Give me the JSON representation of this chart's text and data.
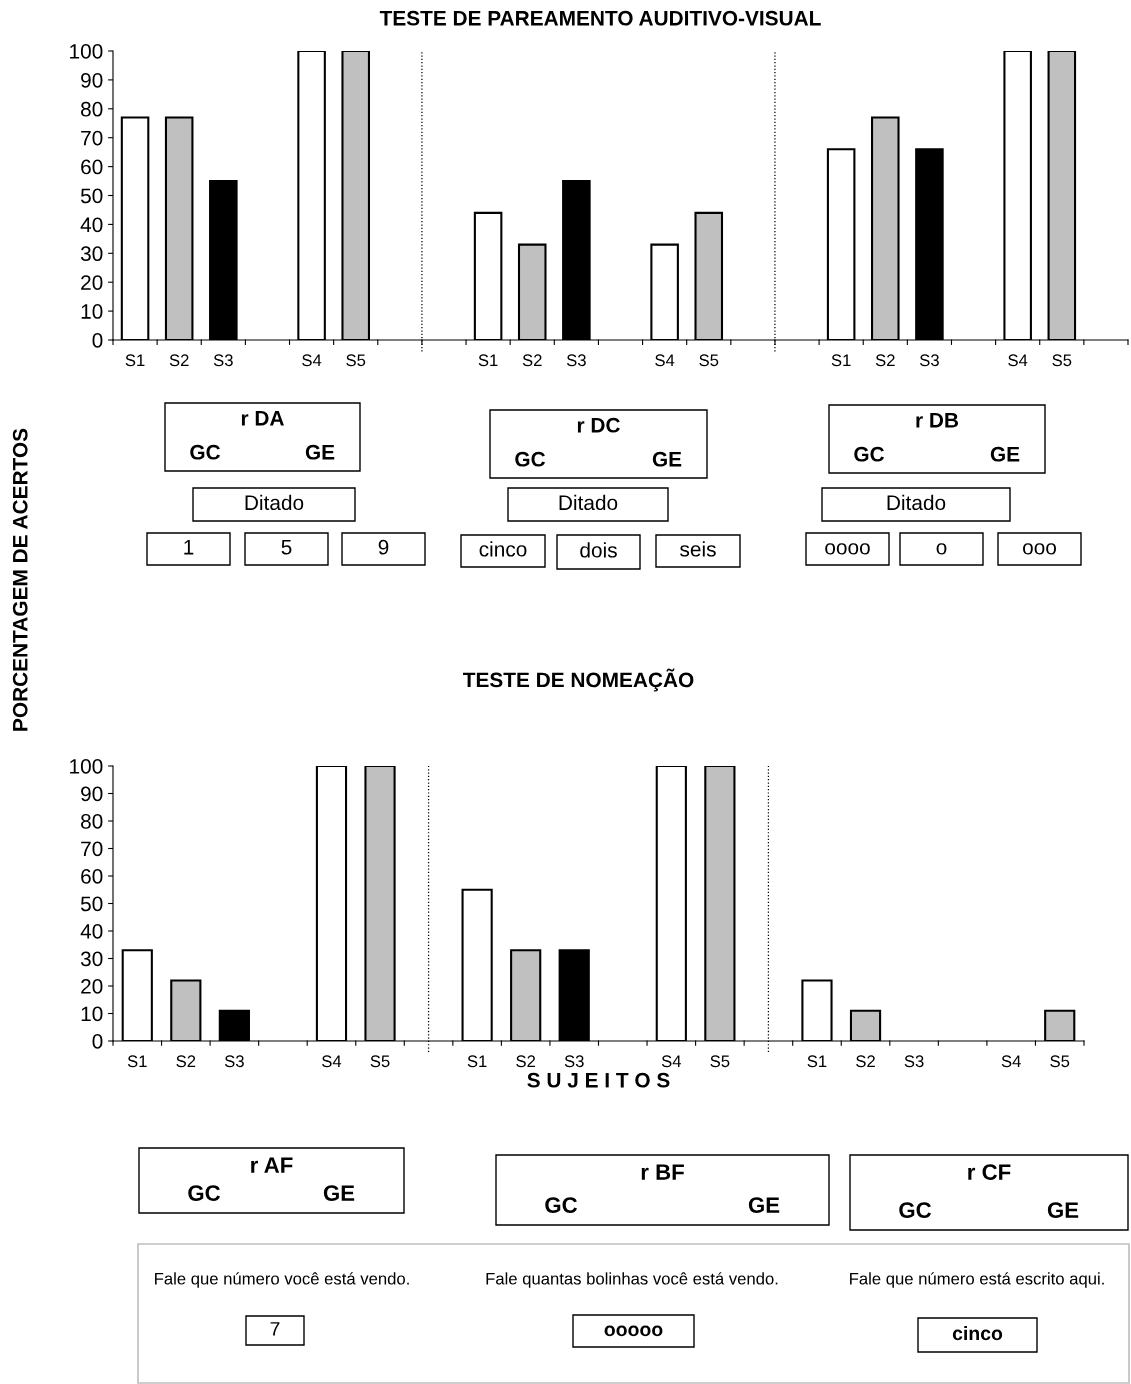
{
  "chart_data": [
    {
      "type": "bar",
      "title": "TESTE DE PAREAMENTO AUDITIVO-VISUAL",
      "ylabel": "PORCENTAGEM DE ACERTOS",
      "categories": [
        "S1",
        "S2",
        "S3",
        null,
        "S4",
        "S5",
        null,
        null,
        "S1",
        "S2",
        "S3",
        null,
        "S4",
        "S5",
        null,
        null,
        "S1",
        "S2",
        "S3",
        null,
        "S4",
        "S5",
        null
      ],
      "values": [
        77,
        77,
        55,
        null,
        100,
        100,
        null,
        null,
        44,
        33,
        55,
        null,
        33,
        44,
        null,
        null,
        66,
        77,
        66,
        null,
        100,
        100,
        null
      ],
      "colors": [
        "#ffffff",
        "#c0c0c0",
        "#000000",
        null,
        "#ffffff",
        "#c0c0c0",
        null,
        null,
        "#ffffff",
        "#c0c0c0",
        "#000000",
        null,
        "#ffffff",
        "#c0c0c0",
        null,
        null,
        "#ffffff",
        "#c0c0c0",
        "#000000",
        null,
        "#ffffff",
        "#c0c0c0",
        null
      ],
      "ylim": [
        0,
        100
      ],
      "yticks": [
        0,
        10,
        20,
        30,
        40,
        50,
        60,
        70,
        80,
        90,
        100
      ],
      "annotations": [
        "r DA",
        "GC",
        "GE",
        "Ditado",
        "1",
        "5",
        "9",
        "r DC",
        "GC",
        "GE",
        "Ditado",
        "cinco",
        "dois",
        "seis",
        "r DB",
        "GC",
        "GE",
        "Ditado",
        "oooo",
        "o",
        "ooo"
      ]
    },
    {
      "type": "bar",
      "title": "TESTE DE NOMEAÇÃO",
      "xlabel": "S U J E I T O S",
      "categories": [
        "S1",
        "S2",
        "S3",
        null,
        "S4",
        "S5",
        null,
        "S1",
        "S2",
        "S3",
        null,
        "S4",
        "S5",
        null,
        "S1",
        "S2",
        "S3",
        null,
        "S4",
        "S5"
      ],
      "values": [
        33,
        22,
        11,
        null,
        100,
        100,
        null,
        55,
        33,
        33,
        null,
        100,
        100,
        null,
        22,
        11,
        0,
        null,
        0,
        11
      ],
      "colors": [
        "#ffffff",
        "#c0c0c0",
        "#000000",
        null,
        "#ffffff",
        "#c0c0c0",
        null,
        "#ffffff",
        "#c0c0c0",
        "#000000",
        null,
        "#ffffff",
        "#c0c0c0",
        null,
        "#ffffff",
        "#c0c0c0",
        null,
        null,
        null,
        "#c0c0c0"
      ],
      "ylim": [
        0,
        100
      ],
      "yticks": [
        0,
        10,
        20,
        30,
        40,
        50,
        60,
        70,
        80,
        90,
        100
      ],
      "annotations": [
        "r AF",
        "GC",
        "GE",
        "r BF",
        "GC",
        "GE",
        "r CF",
        "GC",
        "GE"
      ]
    },
    {
      "type": "other",
      "annotations": [
        "Fale que número você está vendo.",
        "7",
        "Fale quantas bolinhas você está vendo.",
        "ooooo",
        "Fale que número está escrito aqui.",
        "cinco"
      ]
    }
  ]
}
